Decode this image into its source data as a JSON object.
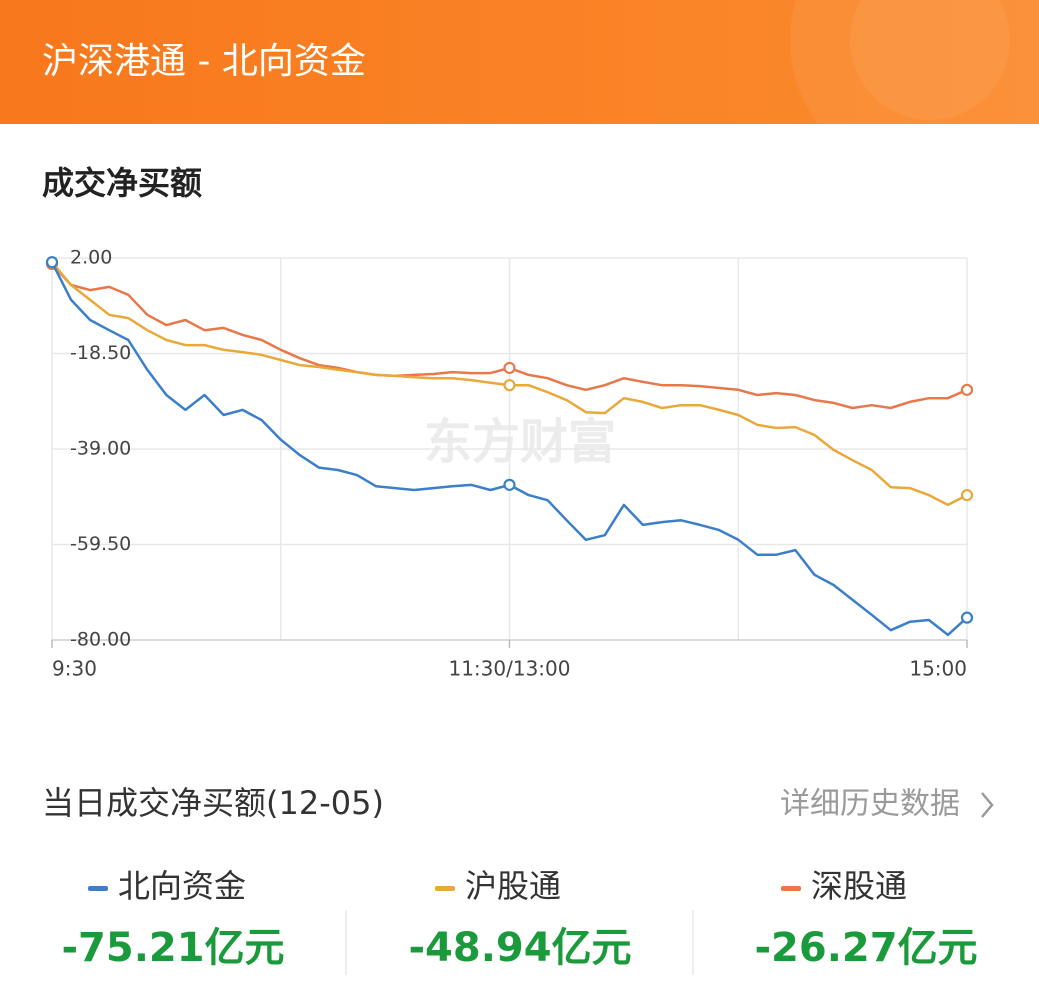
{
  "header": {
    "title": "沪深港通 - 北向资金"
  },
  "section_title": "成交净买额",
  "watermark": "东方财富",
  "chart_data": {
    "type": "line",
    "categories": [
      "9:30",
      null,
      null,
      null,
      null,
      null,
      null,
      null,
      null,
      null,
      null,
      null,
      null,
      null,
      null,
      null,
      null,
      null,
      null,
      null,
      null,
      null,
      null,
      null,
      "11:30/13:00",
      null,
      null,
      null,
      null,
      null,
      null,
      null,
      null,
      null,
      null,
      null,
      null,
      null,
      null,
      null,
      null,
      null,
      null,
      null,
      null,
      null,
      null,
      null,
      "15:00"
    ],
    "series": [
      {
        "name": "北向资金",
        "color": "#3b7fca",
        "values": [
          1.1,
          -7,
          -11.3,
          -13.5,
          -15.6,
          -22,
          -27.4,
          -30.6,
          -27.4,
          -31.7,
          -30.6,
          -32.8,
          -37,
          -40.3,
          -43,
          -43.5,
          -44.6,
          -47,
          -47.4,
          -47.8,
          -47.4,
          -47,
          -46.7,
          -47.8,
          -46.7,
          -48.9,
          -50,
          -54.3,
          -58.5,
          -57.5,
          -51,
          -55.3,
          -54.7,
          -54.3,
          -55.3,
          -56.4,
          -58.5,
          -61.7,
          -61.7,
          -60.7,
          -66,
          -68.2,
          -71.4,
          -74.6,
          -77.9,
          -76.1,
          -75.7,
          -78.9,
          -75.2
        ]
      },
      {
        "name": "沪股通",
        "color": "#e9a83a",
        "values": [
          1.1,
          -3.8,
          -7,
          -10.2,
          -10.9,
          -13.5,
          -15.6,
          -16.7,
          -16.7,
          -17.7,
          -18.2,
          -18.8,
          -19.9,
          -21,
          -21.4,
          -22,
          -22.5,
          -23.1,
          -23.3,
          -23.6,
          -23.8,
          -23.8,
          -24.2,
          -24.8,
          -25.3,
          -25.3,
          -26.8,
          -28.5,
          -31.1,
          -31.3,
          -28.1,
          -28.9,
          -30.2,
          -29.6,
          -29.6,
          -30.6,
          -31.7,
          -33.8,
          -34.5,
          -34.3,
          -36,
          -39.2,
          -41.4,
          -43.5,
          -47.2,
          -47.4,
          -48.9,
          -51,
          -48.9
        ]
      },
      {
        "name": "深股通",
        "color": "#e8784a",
        "values": [
          0.7,
          -3.8,
          -4.9,
          -4.2,
          -5.9,
          -10.2,
          -12.4,
          -11.3,
          -13.5,
          -13,
          -14.5,
          -15.6,
          -17.7,
          -19.5,
          -21,
          -21.6,
          -22.5,
          -23.1,
          -23.3,
          -23.1,
          -22.9,
          -22.5,
          -22.7,
          -22.7,
          -21.6,
          -23.1,
          -23.8,
          -25.3,
          -26.3,
          -25.3,
          -23.8,
          -24.6,
          -25.3,
          -25.3,
          -25.5,
          -25.9,
          -26.3,
          -27.4,
          -27,
          -27.4,
          -28.5,
          -29.1,
          -30.2,
          -29.6,
          -30.2,
          -28.9,
          -28.1,
          -28.1,
          -26.3
        ]
      }
    ],
    "ylim": [
      -80,
      2
    ],
    "yticks": [
      {
        "value": 2,
        "label": "2.00"
      },
      {
        "value": -18.5,
        "label": "-18.50"
      },
      {
        "value": -39,
        "label": "-39.00"
      },
      {
        "value": -59.5,
        "label": "-59.50"
      },
      {
        "value": -80,
        "label": "-80.00"
      }
    ],
    "grid": true
  },
  "summary": {
    "title": "当日成交净买额(12-05)",
    "link": "详细历史数据",
    "values": [
      "-75.21亿元",
      "-48.94亿元",
      "-26.27亿元"
    ]
  }
}
